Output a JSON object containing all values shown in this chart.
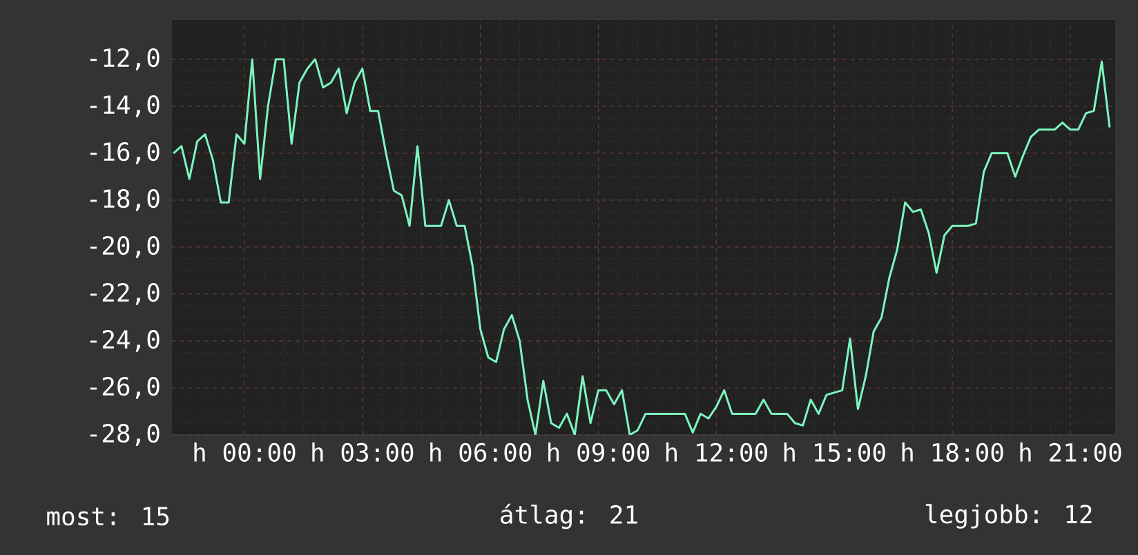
{
  "chart_data": {
    "type": "line",
    "categories": [
      null,
      null,
      null,
      null,
      null,
      null,
      null,
      null,
      null,
      "h 00:00",
      null,
      null,
      null,
      null,
      null,
      null,
      null,
      null,
      null,
      null,
      null,
      null,
      null,
      null,
      "h 03:00",
      null,
      null,
      null,
      null,
      null,
      null,
      null,
      null,
      null,
      null,
      null,
      null,
      null,
      null,
      "h 06:00",
      null,
      null,
      null,
      null,
      null,
      null,
      null,
      null,
      null,
      null,
      null,
      null,
      null,
      null,
      "h 09:00",
      null,
      null,
      null,
      null,
      null,
      null,
      null,
      null,
      null,
      null,
      null,
      null,
      null,
      null,
      "h 12:00",
      null,
      null,
      null,
      null,
      null,
      null,
      null,
      null,
      null,
      null,
      null,
      null,
      null,
      null,
      "h 15:00",
      null,
      null,
      null,
      null,
      null,
      null,
      null,
      null,
      null,
      null,
      null,
      null,
      null,
      null,
      "h 18:00",
      null,
      null,
      null,
      null,
      null,
      null,
      null,
      null,
      null,
      null,
      null,
      null,
      null,
      null,
      "h 21:00",
      null,
      null,
      null,
      null,
      null
    ],
    "values": [
      -16.0,
      -15.7,
      -17.1,
      -15.5,
      -15.2,
      -16.3,
      -18.1,
      -18.1,
      -15.2,
      -15.6,
      -12.0,
      -17.1,
      -14.0,
      -12.0,
      -12.0,
      -15.6,
      -13.0,
      -12.4,
      -12.0,
      -13.2,
      -13.0,
      -12.4,
      -14.3,
      -13.0,
      -12.4,
      -14.2,
      -14.2,
      -16.0,
      -17.6,
      -17.8,
      -19.1,
      -15.7,
      -19.1,
      -19.1,
      -19.1,
      -18.0,
      -19.1,
      -19.1,
      -20.8,
      -23.5,
      -24.7,
      -24.9,
      -23.5,
      -22.9,
      -24.0,
      -26.5,
      -28.0,
      -25.7,
      -27.5,
      -27.7,
      -27.1,
      -28.0,
      -25.5,
      -27.5,
      -26.1,
      -26.1,
      -26.7,
      -26.1,
      -28.0,
      -27.8,
      -27.1,
      -27.1,
      -27.1,
      -27.1,
      -27.1,
      -27.1,
      -27.9,
      -27.1,
      -27.3,
      -26.8,
      -26.1,
      -27.1,
      -27.1,
      -27.1,
      -27.1,
      -26.5,
      -27.1,
      -27.1,
      -27.1,
      -27.5,
      -27.6,
      -26.5,
      -27.1,
      -26.3,
      -26.2,
      -26.1,
      -23.9,
      -26.9,
      -25.5,
      -23.6,
      -23.0,
      -21.3,
      -20.1,
      -18.1,
      -18.5,
      -18.4,
      -19.4,
      -21.1,
      -19.5,
      -19.1,
      -19.1,
      -19.1,
      -19.0,
      -16.8,
      -16.0,
      -16.0,
      -16.0,
      -17.0,
      -16.1,
      -15.3,
      -15.0,
      -15.0,
      -15.0,
      -14.7,
      -15.0,
      -15.0,
      -14.3,
      -14.2,
      -12.1,
      -14.9
    ],
    "color": "#7cf5bf",
    "line_style": "solid",
    "marker": "none",
    "grid": true,
    "ylim": [
      -28,
      -10.3
    ],
    "yticks": [
      {
        "value": -28,
        "label": "-28,0"
      },
      {
        "value": -26,
        "label": "-26,0"
      },
      {
        "value": -24,
        "label": "-24,0"
      },
      {
        "value": -22,
        "label": "-22,0"
      },
      {
        "value": -20,
        "label": "-20,0"
      },
      {
        "value": -18,
        "label": "-18,0"
      },
      {
        "value": -16,
        "label": "-16,0"
      },
      {
        "value": -14,
        "label": "-14,0"
      },
      {
        "value": -12,
        "label": "-12,0"
      }
    ],
    "annotations": [
      "most: 15",
      "átlag: 21",
      "legjobb: 12"
    ]
  }
}
